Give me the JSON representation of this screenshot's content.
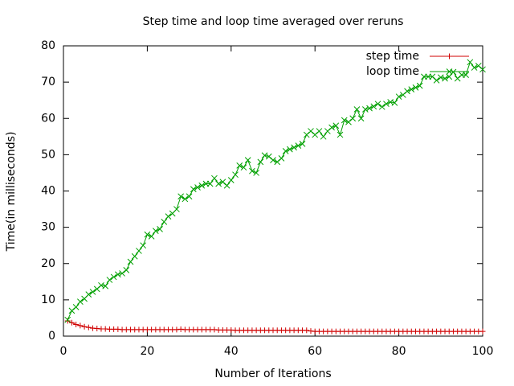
{
  "chart_data": {
    "type": "line",
    "title": "Step time and loop time averaged over reruns",
    "x_label": "Number of Iterations",
    "y_label": "Time(in milliseconds)",
    "x": [
      1,
      2,
      3,
      4,
      5,
      6,
      7,
      8,
      9,
      10,
      11,
      12,
      13,
      14,
      15,
      16,
      17,
      18,
      19,
      20,
      21,
      22,
      23,
      24,
      25,
      26,
      27,
      28,
      29,
      30,
      31,
      32,
      33,
      34,
      35,
      36,
      37,
      38,
      39,
      40,
      41,
      42,
      43,
      44,
      45,
      46,
      47,
      48,
      49,
      50,
      51,
      52,
      53,
      54,
      55,
      56,
      57,
      58,
      59,
      60,
      61,
      62,
      63,
      64,
      65,
      66,
      67,
      68,
      69,
      70,
      71,
      72,
      73,
      74,
      75,
      76,
      77,
      78,
      79,
      80,
      81,
      82,
      83,
      84,
      85,
      86,
      87,
      88,
      89,
      90,
      91,
      92,
      93,
      94,
      95,
      96,
      97,
      98,
      99,
      100
    ],
    "series": [
      {
        "name": "step time",
        "color": "#d00000",
        "marker": "plus",
        "values": [
          4.2,
          3.7,
          3.2,
          2.9,
          2.6,
          2.4,
          2.2,
          2.1,
          2.0,
          2.0,
          1.9,
          1.9,
          1.9,
          1.8,
          1.8,
          1.8,
          1.8,
          1.8,
          1.8,
          1.8,
          1.8,
          1.8,
          1.8,
          1.8,
          1.8,
          1.8,
          1.8,
          1.9,
          1.8,
          1.8,
          1.8,
          1.8,
          1.8,
          1.8,
          1.8,
          1.8,
          1.7,
          1.7,
          1.7,
          1.7,
          1.6,
          1.6,
          1.6,
          1.6,
          1.6,
          1.6,
          1.6,
          1.6,
          1.6,
          1.6,
          1.6,
          1.6,
          1.6,
          1.6,
          1.6,
          1.6,
          1.6,
          1.6,
          1.4,
          1.3,
          1.3,
          1.3,
          1.3,
          1.3,
          1.3,
          1.3,
          1.3,
          1.3,
          1.3,
          1.3,
          1.3,
          1.3,
          1.3,
          1.3,
          1.3,
          1.3,
          1.3,
          1.3,
          1.3,
          1.3,
          1.3,
          1.3,
          1.3,
          1.3,
          1.3,
          1.3,
          1.3,
          1.3,
          1.3,
          1.3,
          1.3,
          1.3,
          1.3,
          1.3,
          1.3,
          1.3,
          1.3,
          1.3,
          1.3,
          1.3
        ]
      },
      {
        "name": "loop time",
        "color": "#00a000",
        "marker": "cross",
        "values": [
          4.5,
          7,
          8,
          9.5,
          10.3,
          11.5,
          12.2,
          13,
          14,
          13.8,
          15.5,
          16.3,
          17,
          17.3,
          18.2,
          20.5,
          22,
          23.5,
          25,
          28,
          27.5,
          29,
          29.5,
          31.5,
          33,
          33.8,
          35,
          38.5,
          37.8,
          38.5,
          40.5,
          41,
          41.5,
          42,
          42,
          43.5,
          42,
          42.5,
          41.5,
          43,
          44.5,
          47,
          46.5,
          48.5,
          45.5,
          45,
          48,
          49.8,
          49.5,
          48.5,
          48,
          49,
          51,
          51.5,
          52,
          52.5,
          53,
          55.5,
          56.5,
          55.5,
          56.5,
          55,
          56.5,
          57.5,
          58,
          55.5,
          59.5,
          59,
          60,
          62.5,
          60,
          62.5,
          62.8,
          63.3,
          64,
          63.2,
          64,
          64.5,
          64.3,
          66,
          66.5,
          67.5,
          68,
          68.5,
          69,
          71.5,
          71.5,
          71.5,
          70.5,
          71.3,
          71,
          71.5,
          72.8,
          71,
          72,
          72,
          75.5,
          74,
          74.5,
          73.5
        ]
      }
    ],
    "xlim": [
      0,
      100
    ],
    "xticks": [
      0,
      20,
      40,
      60,
      80,
      100
    ],
    "ylim": [
      0,
      80
    ],
    "yticks": [
      0,
      10,
      20,
      30,
      40,
      50,
      60,
      70,
      80
    ],
    "grid": false,
    "legend": "top-right"
  }
}
